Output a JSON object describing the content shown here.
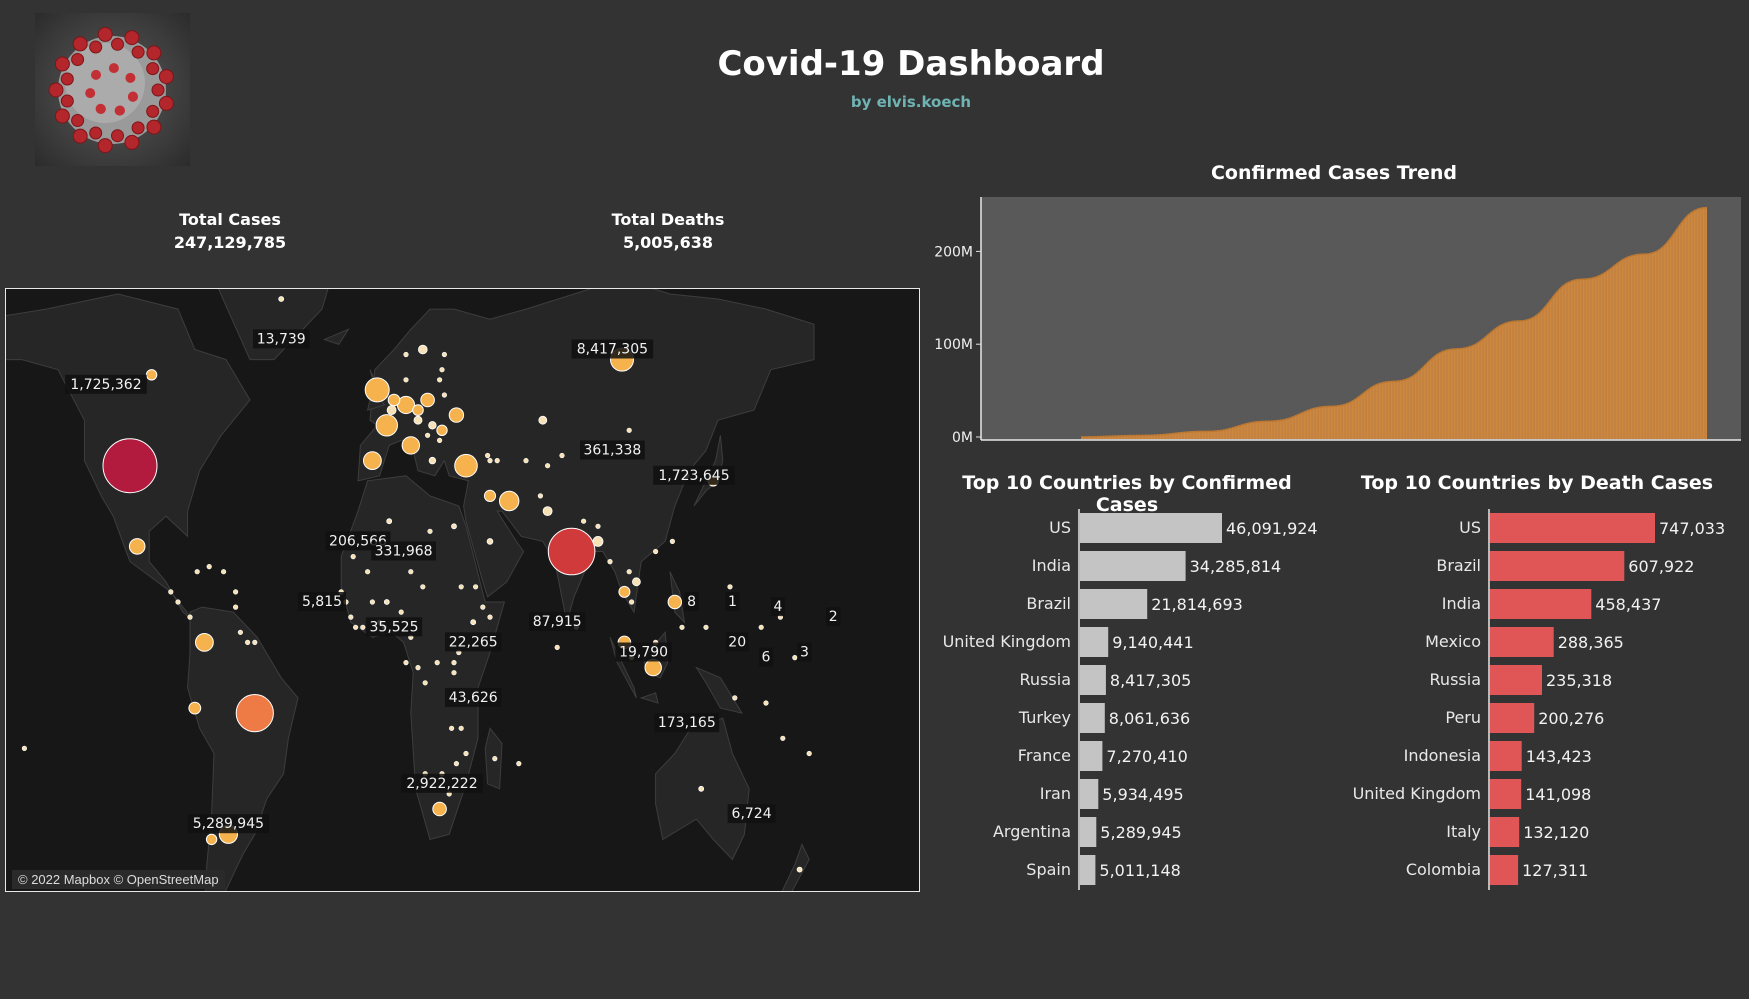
{
  "header": {
    "title": "Covid-19 Dashboard",
    "subtitle": "by elvis.koech"
  },
  "kpis": {
    "total_cases_label": "Total Cases",
    "total_cases_value": "247,129,785",
    "total_deaths_label": "Total Deaths",
    "total_deaths_value": "5,005,638"
  },
  "map": {
    "attribution": "© 2022 Mapbox © OpenStreetMap",
    "labels": [
      {
        "text": "1,725,362",
        "lon": -115,
        "lat": 55
      },
      {
        "text": "13,739",
        "lon": -42,
        "lat": 64
      },
      {
        "text": "8,417,305",
        "lon": 96,
        "lat": 62
      },
      {
        "text": "361,338",
        "lon": 96,
        "lat": 42
      },
      {
        "text": "1,723,645",
        "lon": 130,
        "lat": 37
      },
      {
        "text": "206,566",
        "lon": -10,
        "lat": 24
      },
      {
        "text": "331,968",
        "lon": 9,
        "lat": 22
      },
      {
        "text": "87,915",
        "lon": 73,
        "lat": 8
      },
      {
        "text": "5,815",
        "lon": -25,
        "lat": 12
      },
      {
        "text": "35,525",
        "lon": 5,
        "lat": 7
      },
      {
        "text": "22,265",
        "lon": 38,
        "lat": 4
      },
      {
        "text": "43,626",
        "lon": 38,
        "lat": -7
      },
      {
        "text": "2,922,222",
        "lon": 25,
        "lat": -24
      },
      {
        "text": "5,289,945",
        "lon": -64,
        "lat": -32
      },
      {
        "text": "19,790",
        "lon": 109,
        "lat": 2
      },
      {
        "text": "173,165",
        "lon": 127,
        "lat": -12
      },
      {
        "text": "6,724",
        "lon": 154,
        "lat": -30
      },
      {
        "text": "8",
        "lon": 129,
        "lat": 12
      },
      {
        "text": "1",
        "lon": 146,
        "lat": 12
      },
      {
        "text": "4",
        "lon": 165,
        "lat": 11
      },
      {
        "text": "20",
        "lon": 148,
        "lat": 4
      },
      {
        "text": "6",
        "lon": 160,
        "lat": 1
      },
      {
        "text": "3",
        "lon": 176,
        "lat": 2
      },
      {
        "text": "2",
        "lon": 188,
        "lat": 9
      }
    ],
    "bubbles": [
      {
        "lon": -105,
        "lat": 39,
        "value": 46091924,
        "color": "#b31b3e"
      },
      {
        "lon": 79,
        "lat": 22,
        "value": 34285814,
        "color": "#d13a3a"
      },
      {
        "lon": -53,
        "lat": -10,
        "value": 21814693,
        "color": "#ee7a45"
      },
      {
        "lon": 100,
        "lat": 60,
        "value": 8417305
      },
      {
        "lon": 35,
        "lat": 39,
        "value": 8061636
      },
      {
        "lon": 2,
        "lat": 47,
        "value": 7270410
      },
      {
        "lon": 53,
        "lat": 32,
        "value": 5934495
      },
      {
        "lon": -64,
        "lat": -34,
        "value": 5289945
      },
      {
        "lon": -4,
        "lat": 40,
        "value": 5011148
      },
      {
        "lon": -2,
        "lat": 54,
        "value": 9140441
      },
      {
        "lon": -102,
        "lat": 23,
        "value": 3800000
      },
      {
        "lon": -74,
        "lat": 4,
        "value": 5000000
      },
      {
        "lon": 24,
        "lat": -29,
        "value": 2922222
      },
      {
        "lon": 12,
        "lat": 43,
        "value": 4800000
      },
      {
        "lon": 10,
        "lat": 51,
        "value": 4700000
      },
      {
        "lon": 19,
        "lat": 52,
        "value": 2900000
      },
      {
        "lon": 31,
        "lat": 49,
        "value": 3300000
      },
      {
        "lon": 113,
        "lat": -1,
        "value": 4250000
      },
      {
        "lon": 101,
        "lat": 4,
        "value": 2500000
      },
      {
        "lon": 122,
        "lat": 12,
        "value": 2800000
      },
      {
        "lon": 69,
        "lat": 30,
        "value": 1270000
      },
      {
        "lon": 138,
        "lat": 36,
        "value": 1723645
      },
      {
        "lon": -96,
        "lat": 57,
        "value": 1725362
      },
      {
        "lon": -78,
        "lat": -9,
        "value": 2200000
      },
      {
        "lon": 5,
        "lat": 52,
        "value": 2100000
      },
      {
        "lon": 45,
        "lat": 33,
        "value": 2000000
      },
      {
        "lon": 67,
        "lat": 48,
        "value": 1000000
      },
      {
        "lon": 106,
        "lat": 16,
        "value": 1000000
      },
      {
        "lon": 101,
        "lat": 14,
        "value": 1900000
      },
      {
        "lon": -71,
        "lat": -35,
        "value": 1700000
      },
      {
        "lon": 4,
        "lat": 50,
        "value": 1300000
      },
      {
        "lon": 15,
        "lat": 50,
        "value": 1800000
      },
      {
        "lon": 25,
        "lat": 46,
        "value": 1700000
      },
      {
        "lon": 17,
        "lat": 62,
        "value": 1200000
      },
      {
        "lon": 45,
        "lat": 24,
        "value": 550000
      },
      {
        "lon": 90,
        "lat": 24,
        "value": 1550000
      },
      {
        "lon": 38,
        "lat": 8,
        "value": 360000
      },
      {
        "lon": 30,
        "lat": 27,
        "value": 330000
      },
      {
        "lon": 3,
        "lat": 28,
        "value": 206566
      },
      {
        "lon": 15,
        "lat": 48,
        "value": 1000000
      },
      {
        "lon": 21,
        "lat": 40,
        "value": 700000
      },
      {
        "lon": 21,
        "lat": 47,
        "value": 900000
      },
      {
        "lon": 133,
        "lat": -25,
        "value": 173165
      },
      {
        "lon": 174,
        "lat": -41,
        "value": 6724
      },
      {
        "lon": -42,
        "lat": 72,
        "value": 13739
      },
      {
        "lon": 2,
        "lat": 12,
        "value": 5815
      }
    ]
  },
  "trend": {
    "title": "Confirmed Cases Trend",
    "color": "#d68a3d"
  },
  "bars": {
    "confirmed_title": "Top 10 Countries by Confirmed Cases",
    "deaths_title": "Top 10 Countries by Death Cases",
    "confirmed_color": "#c4c4c4",
    "deaths_color": "#e05656"
  },
  "chart_data": [
    {
      "type": "area",
      "title": "Confirmed Cases Trend",
      "y_ticks": [
        "0M",
        "100M",
        "200M"
      ],
      "ylim": [
        0,
        250000000
      ],
      "x": [
        0,
        10,
        20,
        30,
        40,
        50,
        60,
        70,
        80,
        90,
        100
      ],
      "values": [
        0,
        1800000,
        6000000,
        17000000,
        33000000,
        60000000,
        95000000,
        125000000,
        170000000,
        197000000,
        247129785
      ]
    },
    {
      "type": "bar",
      "title": "Top 10 Countries by Confirmed Cases",
      "categories": [
        "US",
        "India",
        "Brazil",
        "United Kingdom",
        "Russia",
        "Turkey",
        "France",
        "Iran",
        "Argentina",
        "Spain"
      ],
      "values": [
        46091924,
        34285814,
        21814693,
        9140441,
        8417305,
        8061636,
        7270410,
        5934495,
        5289945,
        5011148
      ],
      "labels": [
        "46,091,924",
        "34,285,814",
        "21,814,693",
        "9,140,441",
        "8,417,305",
        "8,061,636",
        "7,270,410",
        "5,934,495",
        "5,289,945",
        "5,011,148"
      ]
    },
    {
      "type": "bar",
      "title": "Top 10 Countries by Death Cases",
      "categories": [
        "US",
        "Brazil",
        "India",
        "Mexico",
        "Russia",
        "Peru",
        "Indonesia",
        "United Kingdom",
        "Italy",
        "Colombia"
      ],
      "values": [
        747033,
        607922,
        458437,
        288365,
        235318,
        200276,
        143423,
        141098,
        132120,
        127311
      ],
      "labels": [
        "747,033",
        "607,922",
        "458,437",
        "288,365",
        "235,318",
        "200,276",
        "143,423",
        "141,098",
        "132,120",
        "127,311"
      ]
    }
  ]
}
